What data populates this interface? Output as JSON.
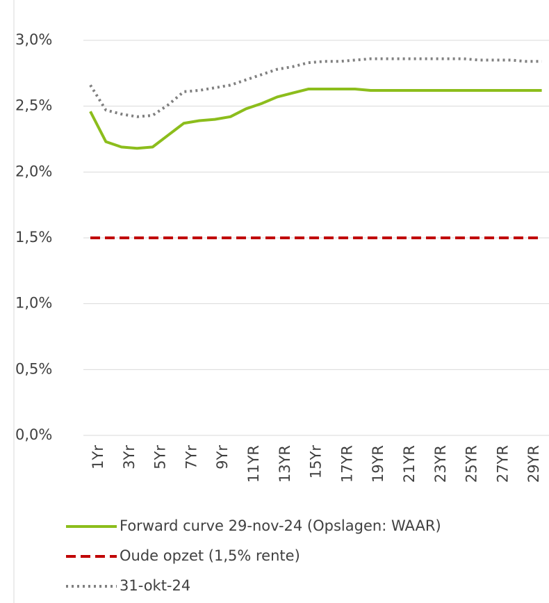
{
  "chart_data": {
    "type": "line",
    "categories": [
      "1Yr",
      null,
      "3Yr",
      null,
      "5Yr",
      null,
      "7Yr",
      null,
      "9Yr",
      null,
      "11YR",
      null,
      "13YR",
      null,
      "15Yr",
      null,
      "17YR",
      null,
      "19YR",
      null,
      "21YR",
      null,
      "23YR",
      null,
      "25YR",
      null,
      "27YR",
      null,
      "29YR",
      null
    ],
    "series": [
      {
        "name": "Forward curve 29-nov-24 (Opslagen: WAAR)",
        "color": "#8cbd1c",
        "dash": "solid",
        "values": [
          2.46,
          2.23,
          2.19,
          2.18,
          2.19,
          2.28,
          2.37,
          2.39,
          2.4,
          2.42,
          2.48,
          2.52,
          2.57,
          2.6,
          2.63,
          2.63,
          2.63,
          2.63,
          2.62,
          2.62,
          2.62,
          2.62,
          2.62,
          2.62,
          2.62,
          2.62,
          2.62,
          2.62,
          2.62,
          2.62
        ]
      },
      {
        "name": "Oude opzet (1,5% rente)",
        "color": "#c00000",
        "dash": "dashed",
        "values": [
          1.5,
          1.5,
          1.5,
          1.5,
          1.5,
          1.5,
          1.5,
          1.5,
          1.5,
          1.5,
          1.5,
          1.5,
          1.5,
          1.5,
          1.5,
          1.5,
          1.5,
          1.5,
          1.5,
          1.5,
          1.5,
          1.5,
          1.5,
          1.5,
          1.5,
          1.5,
          1.5,
          1.5,
          1.5,
          1.5
        ]
      },
      {
        "name": "31-okt-24",
        "color": "#808080",
        "dash": "dotted",
        "values": [
          2.66,
          2.47,
          2.44,
          2.42,
          2.43,
          2.51,
          2.61,
          2.62,
          2.64,
          2.66,
          2.7,
          2.74,
          2.78,
          2.8,
          2.83,
          2.84,
          2.84,
          2.85,
          2.86,
          2.86,
          2.86,
          2.86,
          2.86,
          2.86,
          2.86,
          2.85,
          2.85,
          2.85,
          2.84,
          2.84
        ]
      }
    ],
    "ylim": [
      0,
      3
    ],
    "yticks": [
      {
        "value": 0,
        "label": "0,0%"
      },
      {
        "value": 0.5,
        "label": "0,5%"
      },
      {
        "value": 1,
        "label": "1,0%"
      },
      {
        "value": 1.5,
        "label": "1,5%"
      },
      {
        "value": 2,
        "label": "2,0%"
      },
      {
        "value": 2.5,
        "label": "2,5%"
      },
      {
        "value": 3,
        "label": "3,0%"
      }
    ],
    "grid": true,
    "legend": "bottom"
  }
}
